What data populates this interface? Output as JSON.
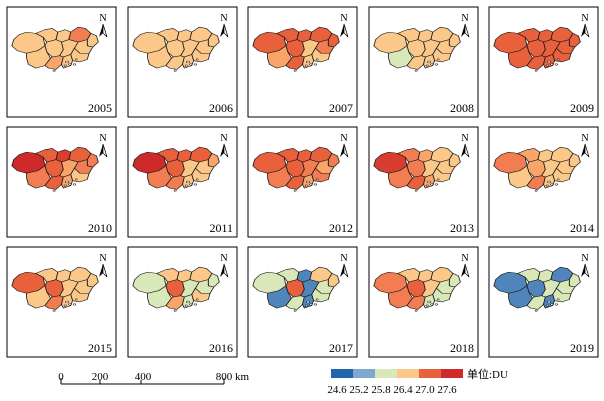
{
  "maps": [
    {
      "year": "2005",
      "fills": [
        "#fbc88a",
        "#fbc88a",
        "#fbc88a",
        "#f27d52",
        "#fbc88a",
        "#fbc88a",
        "#fbc88a",
        "#fbc88a",
        "#fbc88a",
        "#fbc88a",
        "#f9a56a",
        "#fbc88a"
      ]
    },
    {
      "year": "2006",
      "fills": [
        "#fbc88a",
        "#fbc88a",
        "#fbc88a",
        "#fbc88a",
        "#fbc88a",
        "#fbc88a",
        "#fbc88a",
        "#fbc88a",
        "#fbc88a",
        "#fbc88a",
        "#fbc88a",
        "#fbc88a"
      ]
    },
    {
      "year": "2007",
      "fills": [
        "#e8603c",
        "#e8603c",
        "#e8603c",
        "#e8603c",
        "#e8603c",
        "#f27d52",
        "#e8603c",
        "#f9a56a",
        "#fbc88a",
        "#fbc88a",
        "#e8603c",
        "#fbc88a"
      ]
    },
    {
      "year": "2008",
      "fills": [
        "#fbc88a",
        "#fbc88a",
        "#fbc88a",
        "#fbc88a",
        "#fbc88a",
        "#fbc88a",
        "#fbc88a",
        "#d9e8b8",
        "#fbc88a",
        "#fbc88a",
        "#fbc88a",
        "#fbc88a"
      ]
    },
    {
      "year": "2009",
      "fills": [
        "#e8603c",
        "#e8603c",
        "#e8603c",
        "#e8603c",
        "#e8603c",
        "#e8603c",
        "#e8603c",
        "#e8603c",
        "#e8603c",
        "#e8603c",
        "#e8603c",
        "#e8603c"
      ]
    },
    {
      "year": "2010",
      "fills": [
        "#cf2a2a",
        "#e8603c",
        "#d93d2f",
        "#e8603c",
        "#f27d52",
        "#f27d52",
        "#e8603c",
        "#f27d52",
        "#f9a56a",
        "#fbc88a",
        "#e8603c",
        "#f9a56a"
      ]
    },
    {
      "year": "2011",
      "fills": [
        "#cf2a2a",
        "#e8603c",
        "#e8603c",
        "#e8603c",
        "#f9a56a",
        "#fbc88a",
        "#e8603c",
        "#f27d52",
        "#fbc88a",
        "#fbc88a",
        "#f27d52",
        "#fbc88a"
      ]
    },
    {
      "year": "2012",
      "fills": [
        "#e8603c",
        "#e8603c",
        "#e8603c",
        "#e8603c",
        "#f27d52",
        "#f9a56a",
        "#e8603c",
        "#f27d52",
        "#f27d52",
        "#f27d52",
        "#e8603c",
        "#f9a56a"
      ]
    },
    {
      "year": "2013",
      "fills": [
        "#d93d2f",
        "#f27d52",
        "#f9a56a",
        "#fbc88a",
        "#fbc88a",
        "#fbc88a",
        "#f27d52",
        "#f27d52",
        "#fbc88a",
        "#fbc88a",
        "#e8603c",
        "#f9a56a"
      ]
    },
    {
      "year": "2014",
      "fills": [
        "#f27d52",
        "#f9a56a",
        "#fbc88a",
        "#fbc88a",
        "#fbc88a",
        "#fbc88a",
        "#f9a56a",
        "#fbc88a",
        "#fbc88a",
        "#fbc88a",
        "#f27d52",
        "#fbc88a"
      ]
    },
    {
      "year": "2015",
      "fills": [
        "#e8603c",
        "#fbc88a",
        "#fbc88a",
        "#fbc88a",
        "#fbc88a",
        "#fbc88a",
        "#e8603c",
        "#fbc88a",
        "#fbc88a",
        "#fbc88a",
        "#f27d52",
        "#fbc88a"
      ]
    },
    {
      "year": "2016",
      "fills": [
        "#d9e8b8",
        "#fbc88a",
        "#fbc88a",
        "#fbc88a",
        "#d9e8b8",
        "#d9e8b8",
        "#e8603c",
        "#d9e8b8",
        "#d9e8b8",
        "#fbc88a",
        "#f9a56a",
        "#d9e8b8"
      ]
    },
    {
      "year": "2017",
      "fills": [
        "#d9e8b8",
        "#d9e8b8",
        "#4f85bb",
        "#fbc88a",
        "#fbc88a",
        "#d9e8b8",
        "#e8603c",
        "#4f85bb",
        "#4f85bb",
        "#d9e8b8",
        "#d9e8b8",
        "#4f85bb"
      ]
    },
    {
      "year": "2018",
      "fills": [
        "#f27d52",
        "#fbc88a",
        "#fbc88a",
        "#fbc88a",
        "#d9e8b8",
        "#d9e8b8",
        "#e8603c",
        "#f27d52",
        "#fbc88a",
        "#d9e8b8",
        "#f27d52",
        "#d9e8b8"
      ]
    },
    {
      "year": "2019",
      "fills": [
        "#4f85bb",
        "#d9e8b8",
        "#d9e8b8",
        "#4f85bb",
        "#d9e8b8",
        "#d9e8b8",
        "#4f85bb",
        "#4f85bb",
        "#d9e8b8",
        "#d9e8b8",
        "#d9e8b8",
        "#4f85bb"
      ]
    }
  ],
  "north_label": "N",
  "scale_bar": {
    "ticks": [
      "0",
      "200",
      "400",
      "800"
    ],
    "unit": "km"
  },
  "legend": {
    "colors": [
      "#2166ac",
      "#7ea8cf",
      "#d9e8b8",
      "#fbc88a",
      "#e8603c",
      "#cf2a2a"
    ],
    "labels": [
      "24.6",
      "25.2",
      "25.8",
      "26.4",
      "27.0",
      "27.6"
    ],
    "unit_label": "单位:DU"
  }
}
